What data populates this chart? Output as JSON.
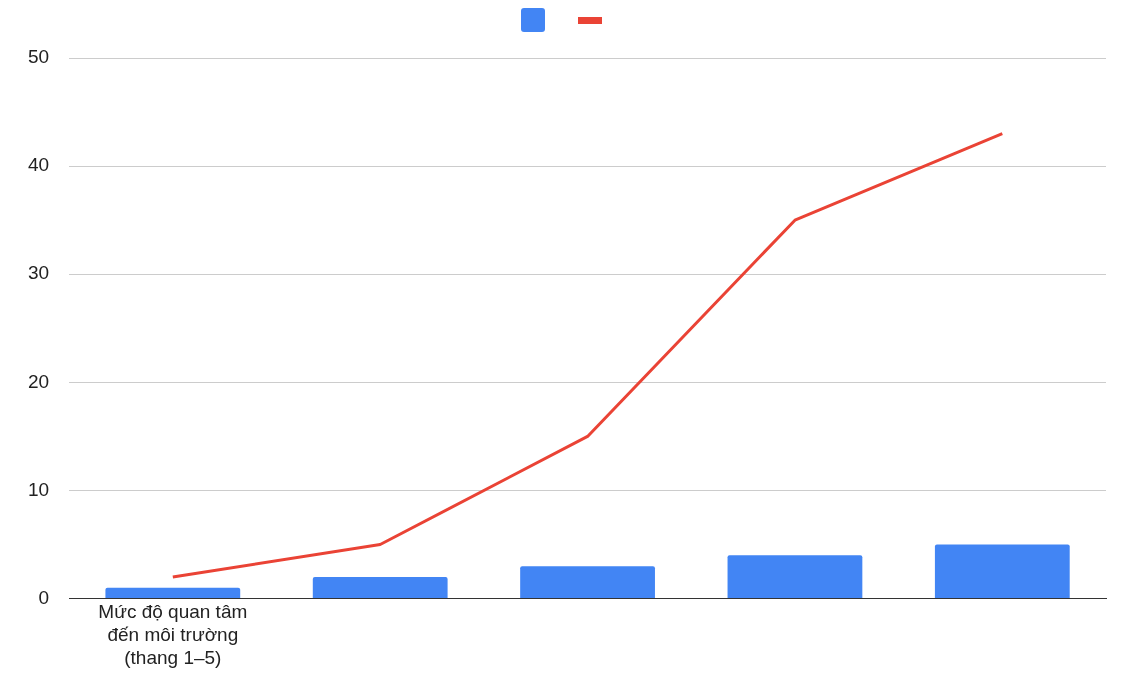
{
  "chart_data": {
    "type": "bar",
    "categories": [
      "Mức độ quan tâm đến môi trường (thang 1–5)",
      null,
      null,
      null,
      null
    ],
    "series": [
      {
        "color": "#4285f4",
        "values": [
          1,
          2,
          3,
          4,
          5
        ]
      },
      {
        "type": "line",
        "color": "#ea4335",
        "values": [
          2,
          5,
          15,
          35,
          43
        ]
      }
    ],
    "ylim": [
      0,
      50
    ],
    "yticks": [
      0,
      10,
      20,
      30,
      40,
      50
    ],
    "grid": "y",
    "marker": "none"
  }
}
